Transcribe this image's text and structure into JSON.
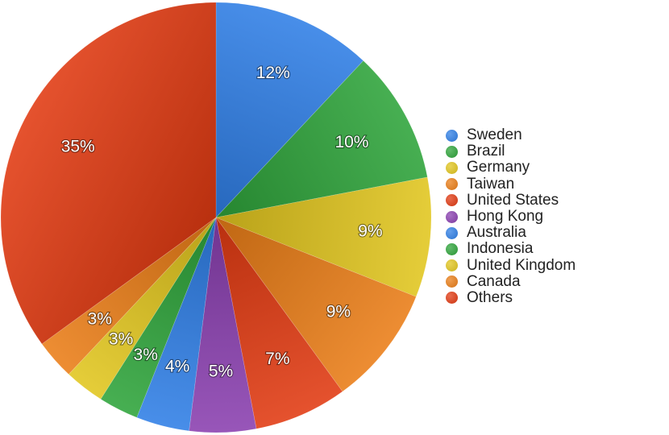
{
  "chart_data": {
    "type": "pie",
    "title": "",
    "slices": [
      {
        "name": "Sweden",
        "value": 12,
        "label": "12%",
        "color": "#2f7fe6"
      },
      {
        "name": "Brazil",
        "value": 10,
        "label": "10%",
        "color": "#2ea43a"
      },
      {
        "name": "Germany",
        "value": 9,
        "label": "9%",
        "color": "#e2c61e"
      },
      {
        "name": "Taiwan",
        "value": 9,
        "label": "9%",
        "color": "#ea7d17"
      },
      {
        "name": "United States",
        "value": 7,
        "label": "7%",
        "color": "#e23a12"
      },
      {
        "name": "Hong Kong",
        "value": 5,
        "label": "5%",
        "color": "#8a3fb0"
      },
      {
        "name": "Australia",
        "value": 4,
        "label": "4%",
        "color": "#2f7fe6"
      },
      {
        "name": "Indonesia",
        "value": 3,
        "label": "3%",
        "color": "#2ea43a"
      },
      {
        "name": "United Kingdom",
        "value": 3,
        "label": "3%",
        "color": "#e2c61e"
      },
      {
        "name": "Canada",
        "value": 3,
        "label": "3%",
        "color": "#ea7d17"
      },
      {
        "name": "Others",
        "value": 35,
        "label": "35%",
        "color": "#e23a12"
      }
    ],
    "legend_position": "right"
  }
}
